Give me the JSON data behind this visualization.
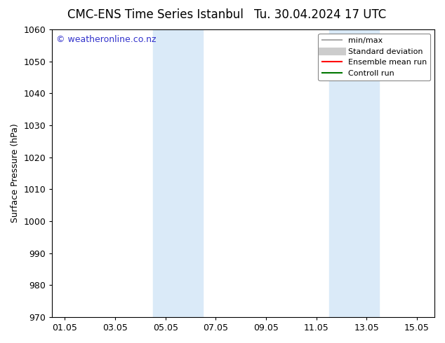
{
  "title_left": "CMC-ENS Time Series Istanbul",
  "title_right": "Tu. 30.04.2024 17 UTC",
  "ylabel": "Surface Pressure (hPa)",
  "ylim": [
    970,
    1060
  ],
  "yticks": [
    970,
    980,
    990,
    1000,
    1010,
    1020,
    1030,
    1040,
    1050,
    1060
  ],
  "xtick_labels": [
    "01.05",
    "03.05",
    "05.05",
    "07.05",
    "09.05",
    "11.05",
    "13.05",
    "15.05"
  ],
  "xtick_positions": [
    0,
    2,
    4,
    6,
    8,
    10,
    12,
    14
  ],
  "xlim": [
    -0.5,
    14.7
  ],
  "shaded_bands": [
    {
      "x_start": 3.5,
      "x_end": 5.5
    },
    {
      "x_start": 10.5,
      "x_end": 12.5
    }
  ],
  "watermark": "© weatheronline.co.nz",
  "watermark_color": "#3333cc",
  "bg_color": "#ffffff",
  "plot_bg_color": "#ffffff",
  "shade_color": "#daeaf8",
  "legend_items": [
    {
      "label": "min/max",
      "color": "#aaaaaa",
      "lw": 1.5
    },
    {
      "label": "Standard deviation",
      "color": "#cccccc",
      "lw": 8
    },
    {
      "label": "Ensemble mean run",
      "color": "#ff0000",
      "lw": 1.5
    },
    {
      "label": "Controll run",
      "color": "#007700",
      "lw": 1.5
    }
  ],
  "title_fontsize": 12,
  "axis_label_fontsize": 9,
  "tick_fontsize": 9,
  "legend_fontsize": 8,
  "watermark_fontsize": 9
}
